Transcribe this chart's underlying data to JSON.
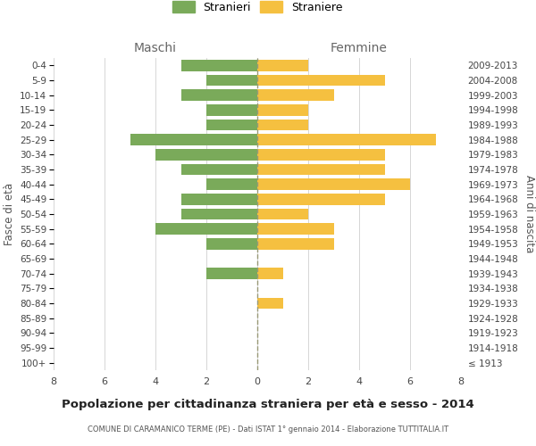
{
  "age_groups": [
    "100+",
    "95-99",
    "90-94",
    "85-89",
    "80-84",
    "75-79",
    "70-74",
    "65-69",
    "60-64",
    "55-59",
    "50-54",
    "45-49",
    "40-44",
    "35-39",
    "30-34",
    "25-29",
    "20-24",
    "15-19",
    "10-14",
    "5-9",
    "0-4"
  ],
  "birth_years": [
    "≤ 1913",
    "1914-1918",
    "1919-1923",
    "1924-1928",
    "1929-1933",
    "1934-1938",
    "1939-1943",
    "1944-1948",
    "1949-1953",
    "1954-1958",
    "1959-1963",
    "1964-1968",
    "1969-1973",
    "1974-1978",
    "1979-1983",
    "1984-1988",
    "1989-1993",
    "1994-1998",
    "1999-2003",
    "2004-2008",
    "2009-2013"
  ],
  "males": [
    0,
    0,
    0,
    0,
    0,
    0,
    2,
    0,
    2,
    4,
    3,
    3,
    2,
    3,
    4,
    5,
    2,
    2,
    3,
    2,
    3
  ],
  "females": [
    0,
    0,
    0,
    0,
    1,
    0,
    1,
    0,
    3,
    3,
    2,
    5,
    6,
    5,
    5,
    7,
    2,
    2,
    3,
    5,
    2
  ],
  "male_color": "#7aaa5a",
  "female_color": "#f5c040",
  "background_color": "#ffffff",
  "grid_color": "#d0d0d0",
  "title": "Popolazione per cittadinanza straniera per età e sesso - 2014",
  "subtitle": "COMUNE DI CARAMANICO TERME (PE) - Dati ISTAT 1° gennaio 2014 - Elaborazione TUTTITALIA.IT",
  "xlabel_left": "Maschi",
  "xlabel_right": "Femmine",
  "ylabel_left": "Fasce di età",
  "ylabel_right": "Anni di nascita",
  "legend_male": "Stranieri",
  "legend_female": "Straniere",
  "xlim": 8,
  "bar_height": 0.75
}
